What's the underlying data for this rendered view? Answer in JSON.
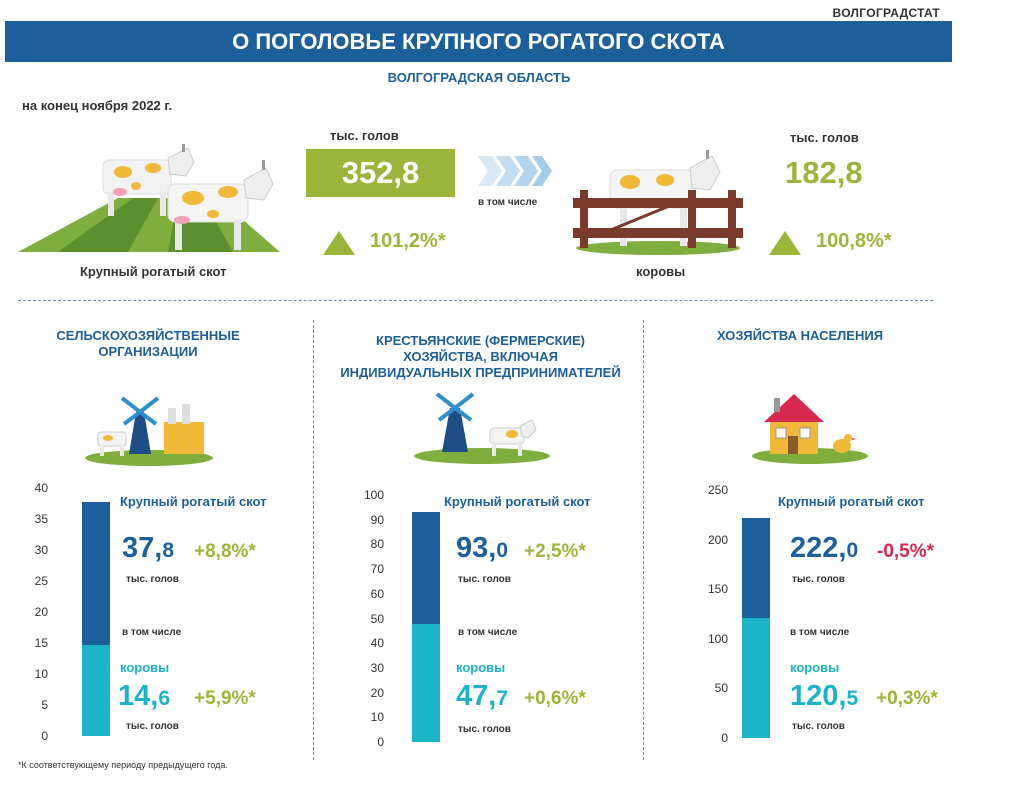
{
  "header": {
    "organization": "ВОЛГОГРАДСТАТ",
    "title": "О ПОГОЛОВЬЕ КРУПНОГО РОГАТОГО СКОТА",
    "region": "ВОЛГОГРАДСКАЯ ОБЛАСТЬ",
    "date": "на конец ноября 2022 г."
  },
  "summary": {
    "cattle": {
      "unit": "тыс. голов",
      "value": "352,8",
      "growth": "101,2%*",
      "caption": "Крупный рогатый скот"
    },
    "link": "в том числе",
    "cows": {
      "unit": "тыс. голов",
      "value": "182,8",
      "growth": "100,8%*",
      "caption": "коровы"
    }
  },
  "colors": {
    "dark_blue": "#1d5f9b",
    "teal": "#1bb3c8",
    "green": "#9bb53a",
    "red": "#d9284f"
  },
  "icons": [
    "cattle-on-field-icon",
    "cow-behind-fence-icon",
    "chevrons-right-icon",
    "up-triangle-icon",
    "windmill-farm-icon",
    "windmill-cow-icon",
    "house-chicken-icon"
  ],
  "sections": [
    {
      "title_lines": [
        "СЕЛЬСКОХОЗЯЙСТВЕННЫЕ",
        "ОРГАНИЗАЦИИ"
      ]
    },
    {
      "title_lines": [
        "КРЕСТЬЯНСКИЕ (ФЕРМЕРСКИЕ)",
        "ХОЗЯЙСТВА, ВКЛЮЧАЯ",
        "ИНДИВИДУАЛЬНЫХ ПРЕДПРИНИМАТЕЛЕЙ"
      ]
    },
    {
      "title_lines": [
        "ХОЗЯЙСТВА НАСЕЛЕНИЯ"
      ]
    }
  ],
  "chart_data": [
    {
      "type": "bar",
      "axis_ticks": [
        "40",
        "35",
        "30",
        "25",
        "20",
        "15",
        "10",
        "5",
        "0"
      ],
      "ylim": [
        0,
        40
      ],
      "cattle": {
        "label": "Крупный рогатый скот",
        "value": 37.8,
        "int": "37,",
        "dec": "8",
        "change": "+8,8%*",
        "unit": "тыс. голов"
      },
      "link": "в том числе",
      "cows": {
        "label": "коровы",
        "value": 14.6,
        "int": "14,",
        "dec": "6",
        "change": "+5,9%*",
        "unit": "тыс. голов"
      }
    },
    {
      "type": "bar",
      "axis_ticks": [
        "100",
        "90",
        "80",
        "70",
        "60",
        "50",
        "40",
        "30",
        "20",
        "10",
        "0"
      ],
      "ylim": [
        0,
        100
      ],
      "cattle": {
        "label": "Крупный рогатый скот",
        "value": 93.0,
        "int": "93,",
        "dec": "0",
        "change": "+2,5%*",
        "unit": "тыс. голов"
      },
      "link": "в том числе",
      "cows": {
        "label": "коровы",
        "value": 47.7,
        "int": "47,",
        "dec": "7",
        "change": "+0,6%*",
        "unit": "тыс. голов"
      }
    },
    {
      "type": "bar",
      "axis_ticks": [
        "250",
        "200",
        "150",
        "100",
        "50",
        "0"
      ],
      "ylim": [
        0,
        250
      ],
      "cattle": {
        "label": "Крупный рогатый скот",
        "value": 222.0,
        "int": "222,",
        "dec": "0",
        "change": "-0,5%*",
        "unit": "тыс. голов"
      },
      "link": "в том числе",
      "cows": {
        "label": "коровы",
        "value": 120.5,
        "int": "120,",
        "dec": "5",
        "change": "+0,3%*",
        "unit": "тыс. голов"
      }
    }
  ],
  "footnote": "*К соответствующему периоду предыдущего года."
}
